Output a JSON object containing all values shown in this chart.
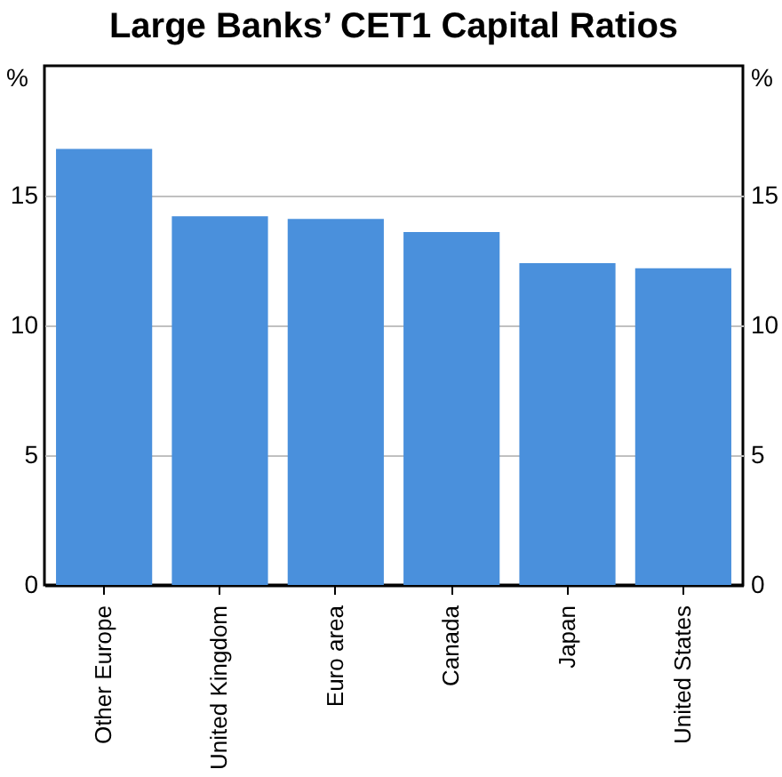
{
  "chart_data": {
    "type": "bar",
    "title": "Large Banks’ CET1 Capital Ratios",
    "categories": [
      "Other Europe",
      "United Kingdom",
      "Euro area",
      "Canada",
      "Japan",
      "United States"
    ],
    "values": [
      16.8,
      14.2,
      14.1,
      13.6,
      12.4,
      12.2
    ],
    "color": "#4a90dc",
    "ylabel": "%",
    "y2label": "%",
    "ylim": [
      0,
      20
    ],
    "yticks": [
      0,
      5,
      10,
      15
    ],
    "y2lim": [
      0,
      20
    ],
    "y2ticks": [
      0,
      5,
      10,
      15
    ],
    "grid": "y"
  }
}
